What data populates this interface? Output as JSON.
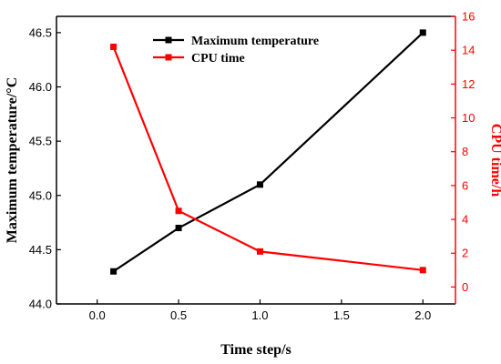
{
  "chart_data": {
    "type": "line",
    "xlabel": "Time step/s",
    "ylabel_left": "Maximum temperature/°C",
    "ylabel_right": "CPU time/h",
    "xlim": [
      -0.25,
      2.2
    ],
    "ylim_left": [
      44.0,
      46.65
    ],
    "ylim_right": [
      -1.0,
      16.0
    ],
    "x_ticks": [
      0.0,
      0.5,
      1.0,
      1.5,
      2.0
    ],
    "x_tick_labels": [
      "0.0",
      "0.5",
      "1.0",
      "1.5",
      "2.0"
    ],
    "y_left_ticks": [
      44.0,
      44.5,
      45.0,
      45.5,
      46.0,
      46.5
    ],
    "y_left_tick_labels": [
      "44.0",
      "44.5",
      "45.0",
      "45.5",
      "46.0",
      "46.5"
    ],
    "y_right_ticks": [
      0,
      2,
      4,
      6,
      8,
      10,
      12,
      14,
      16
    ],
    "y_right_tick_labels": [
      "0",
      "2",
      "4",
      "6",
      "8",
      "10",
      "12",
      "14",
      "16"
    ],
    "grid": false,
    "legend_position": "top-center",
    "series": [
      {
        "name": "Maximum temperature",
        "axis": "left",
        "color": "#000000",
        "marker": "square",
        "x": [
          0.1,
          0.5,
          1.0,
          2.0
        ],
        "y": [
          44.3,
          44.7,
          45.1,
          46.5
        ]
      },
      {
        "name": "CPU time",
        "axis": "right",
        "color": "#ff0000",
        "marker": "square",
        "x": [
          0.1,
          0.5,
          1.0,
          2.0
        ],
        "y": [
          14.2,
          4.5,
          2.1,
          1.0
        ]
      }
    ]
  }
}
